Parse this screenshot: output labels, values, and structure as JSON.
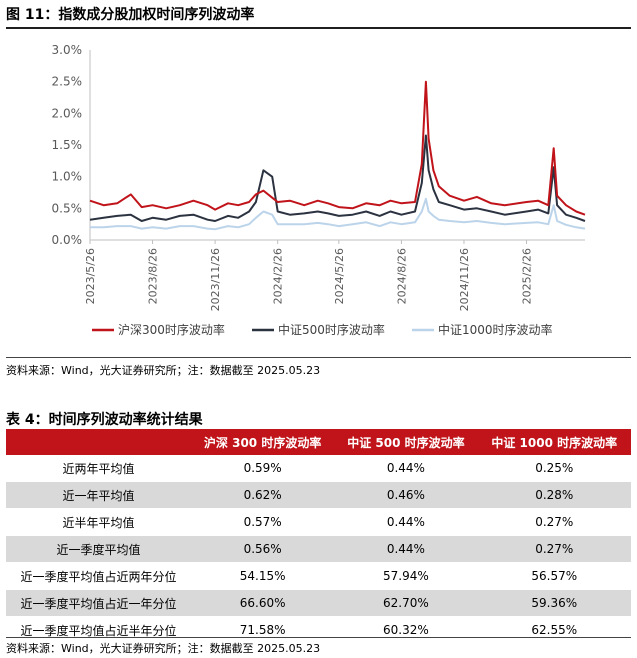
{
  "figure": {
    "title": "图 11：指数成分股加权时间序列波动率",
    "source": "资料来源：Wind，光大证券研究所；注：数据截至 2025.05.23"
  },
  "chart_data": {
    "type": "line",
    "x_tick_labels": [
      "2023/5/26",
      "2023/8/26",
      "2023/11/26",
      "2024/2/26",
      "2024/5/26",
      "2024/8/26",
      "2024/11/26",
      "2025/2/26"
    ],
    "y_tick_labels": [
      "0.0%",
      "0.5%",
      "1.0%",
      "1.5%",
      "2.0%",
      "2.5%",
      "3.0%"
    ],
    "ylim": [
      0,
      3.0
    ],
    "x_range": [
      "2023/5/26",
      "2025/5/23"
    ],
    "grid": false,
    "legend_position": "bottom",
    "series": [
      {
        "name": "沪深300时序波动率",
        "color": "#c0141a",
        "points": [
          [
            "2023/5/26",
            0.62
          ],
          [
            "2023/6/15",
            0.55
          ],
          [
            "2023/7/5",
            0.58
          ],
          [
            "2023/7/25",
            0.72
          ],
          [
            "2023/8/10",
            0.52
          ],
          [
            "2023/8/26",
            0.55
          ],
          [
            "2023/9/15",
            0.5
          ],
          [
            "2023/10/5",
            0.55
          ],
          [
            "2023/10/25",
            0.62
          ],
          [
            "2023/11/15",
            0.55
          ],
          [
            "2023/11/26",
            0.48
          ],
          [
            "2023/12/15",
            0.58
          ],
          [
            "2023/12/30",
            0.55
          ],
          [
            "2024/1/15",
            0.6
          ],
          [
            "2024/1/25",
            0.72
          ],
          [
            "2024/2/5",
            0.78
          ],
          [
            "2024/2/20",
            0.65
          ],
          [
            "2024/2/26",
            0.6
          ],
          [
            "2024/3/15",
            0.62
          ],
          [
            "2024/4/5",
            0.55
          ],
          [
            "2024/4/25",
            0.62
          ],
          [
            "2024/5/10",
            0.58
          ],
          [
            "2024/5/26",
            0.52
          ],
          [
            "2024/6/15",
            0.5
          ],
          [
            "2024/7/5",
            0.58
          ],
          [
            "2024/7/25",
            0.55
          ],
          [
            "2024/8/10",
            0.62
          ],
          [
            "2024/8/26",
            0.58
          ],
          [
            "2024/9/15",
            0.6
          ],
          [
            "2024/9/25",
            1.2
          ],
          [
            "2024/10/1",
            2.5
          ],
          [
            "2024/10/5",
            1.6
          ],
          [
            "2024/10/12",
            1.1
          ],
          [
            "2024/10/20",
            0.85
          ],
          [
            "2024/11/5",
            0.7
          ],
          [
            "2024/11/26",
            0.62
          ],
          [
            "2024/12/15",
            0.68
          ],
          [
            "2025/1/5",
            0.58
          ],
          [
            "2025/1/25",
            0.55
          ],
          [
            "2025/2/26",
            0.6
          ],
          [
            "2025/3/15",
            0.62
          ],
          [
            "2025/3/30",
            0.55
          ],
          [
            "2025/4/7",
            1.45
          ],
          [
            "2025/4/12",
            0.7
          ],
          [
            "2025/4/25",
            0.55
          ],
          [
            "2025/5/10",
            0.45
          ],
          [
            "2025/5/23",
            0.4
          ]
        ]
      },
      {
        "name": "中证500时序波动率",
        "color": "#2b3240",
        "points": [
          [
            "2023/5/26",
            0.32
          ],
          [
            "2023/6/15",
            0.35
          ],
          [
            "2023/7/5",
            0.38
          ],
          [
            "2023/7/25",
            0.4
          ],
          [
            "2023/8/10",
            0.3
          ],
          [
            "2023/8/26",
            0.35
          ],
          [
            "2023/9/15",
            0.32
          ],
          [
            "2023/10/5",
            0.38
          ],
          [
            "2023/10/25",
            0.4
          ],
          [
            "2023/11/15",
            0.32
          ],
          [
            "2023/11/26",
            0.3
          ],
          [
            "2023/12/15",
            0.38
          ],
          [
            "2023/12/30",
            0.35
          ],
          [
            "2024/1/15",
            0.45
          ],
          [
            "2024/1/25",
            0.6
          ],
          [
            "2024/2/5",
            1.1
          ],
          [
            "2024/2/18",
            1.0
          ],
          [
            "2024/2/26",
            0.45
          ],
          [
            "2024/3/15",
            0.4
          ],
          [
            "2024/4/5",
            0.42
          ],
          [
            "2024/4/25",
            0.45
          ],
          [
            "2024/5/10",
            0.42
          ],
          [
            "2024/5/26",
            0.38
          ],
          [
            "2024/6/15",
            0.4
          ],
          [
            "2024/7/5",
            0.45
          ],
          [
            "2024/7/25",
            0.38
          ],
          [
            "2024/8/10",
            0.45
          ],
          [
            "2024/8/26",
            0.4
          ],
          [
            "2024/9/15",
            0.45
          ],
          [
            "2024/9/25",
            0.9
          ],
          [
            "2024/10/1",
            1.65
          ],
          [
            "2024/10/5",
            1.1
          ],
          [
            "2024/10/12",
            0.8
          ],
          [
            "2024/10/20",
            0.6
          ],
          [
            "2024/11/5",
            0.55
          ],
          [
            "2024/11/26",
            0.48
          ],
          [
            "2024/12/15",
            0.5
          ],
          [
            "2025/1/5",
            0.45
          ],
          [
            "2025/1/25",
            0.4
          ],
          [
            "2025/2/26",
            0.45
          ],
          [
            "2025/3/15",
            0.48
          ],
          [
            "2025/3/30",
            0.42
          ],
          [
            "2025/4/7",
            1.15
          ],
          [
            "2025/4/12",
            0.55
          ],
          [
            "2025/4/25",
            0.4
          ],
          [
            "2025/5/10",
            0.35
          ],
          [
            "2025/5/23",
            0.3
          ]
        ]
      },
      {
        "name": "中证1000时序波动率",
        "color": "#bcd4ea",
        "points": [
          [
            "2023/5/26",
            0.2
          ],
          [
            "2023/6/15",
            0.2
          ],
          [
            "2023/7/5",
            0.22
          ],
          [
            "2023/7/25",
            0.22
          ],
          [
            "2023/8/10",
            0.18
          ],
          [
            "2023/8/26",
            0.2
          ],
          [
            "2023/9/15",
            0.18
          ],
          [
            "2023/10/5",
            0.22
          ],
          [
            "2023/10/25",
            0.22
          ],
          [
            "2023/11/15",
            0.18
          ],
          [
            "2023/11/26",
            0.17
          ],
          [
            "2023/12/15",
            0.22
          ],
          [
            "2023/12/30",
            0.2
          ],
          [
            "2024/1/15",
            0.25
          ],
          [
            "2024/1/25",
            0.35
          ],
          [
            "2024/2/5",
            0.45
          ],
          [
            "2024/2/18",
            0.4
          ],
          [
            "2024/2/26",
            0.25
          ],
          [
            "2024/3/15",
            0.25
          ],
          [
            "2024/4/5",
            0.25
          ],
          [
            "2024/4/25",
            0.27
          ],
          [
            "2024/5/10",
            0.25
          ],
          [
            "2024/5/26",
            0.22
          ],
          [
            "2024/6/15",
            0.25
          ],
          [
            "2024/7/5",
            0.28
          ],
          [
            "2024/7/25",
            0.22
          ],
          [
            "2024/8/10",
            0.28
          ],
          [
            "2024/8/26",
            0.25
          ],
          [
            "2024/9/15",
            0.28
          ],
          [
            "2024/9/25",
            0.45
          ],
          [
            "2024/10/1",
            0.65
          ],
          [
            "2024/10/5",
            0.45
          ],
          [
            "2024/10/12",
            0.38
          ],
          [
            "2024/10/20",
            0.32
          ],
          [
            "2024/11/5",
            0.3
          ],
          [
            "2024/11/26",
            0.28
          ],
          [
            "2024/12/15",
            0.3
          ],
          [
            "2025/1/5",
            0.27
          ],
          [
            "2025/1/25",
            0.25
          ],
          [
            "2025/2/26",
            0.27
          ],
          [
            "2025/3/15",
            0.28
          ],
          [
            "2025/3/30",
            0.25
          ],
          [
            "2025/4/7",
            0.55
          ],
          [
            "2025/4/12",
            0.3
          ],
          [
            "2025/4/25",
            0.24
          ],
          [
            "2025/5/10",
            0.2
          ],
          [
            "2025/5/23",
            0.18
          ]
        ]
      }
    ]
  },
  "table": {
    "title": "表 4：时间序列波动率统计结果",
    "headers": [
      "",
      "沪深 300 时序波动率",
      "中证 500 时序波动率",
      "中证 1000 时序波动率"
    ],
    "rows": [
      [
        "近两年平均值",
        "0.59%",
        "0.44%",
        "0.25%"
      ],
      [
        "近一年平均值",
        "0.62%",
        "0.46%",
        "0.28%"
      ],
      [
        "近半年平均值",
        "0.57%",
        "0.44%",
        "0.27%"
      ],
      [
        "近一季度平均值",
        "0.56%",
        "0.44%",
        "0.27%"
      ],
      [
        "近一季度平均值占近两年分位",
        "54.15%",
        "57.94%",
        "56.57%"
      ],
      [
        "近一季度平均值占近一年分位",
        "66.60%",
        "62.70%",
        "59.36%"
      ],
      [
        "近一季度平均值占近半年分位",
        "71.58%",
        "60.32%",
        "62.55%"
      ]
    ],
    "source": "资料来源：Wind，光大证券研究所；注：数据截至 2025.05.23"
  }
}
